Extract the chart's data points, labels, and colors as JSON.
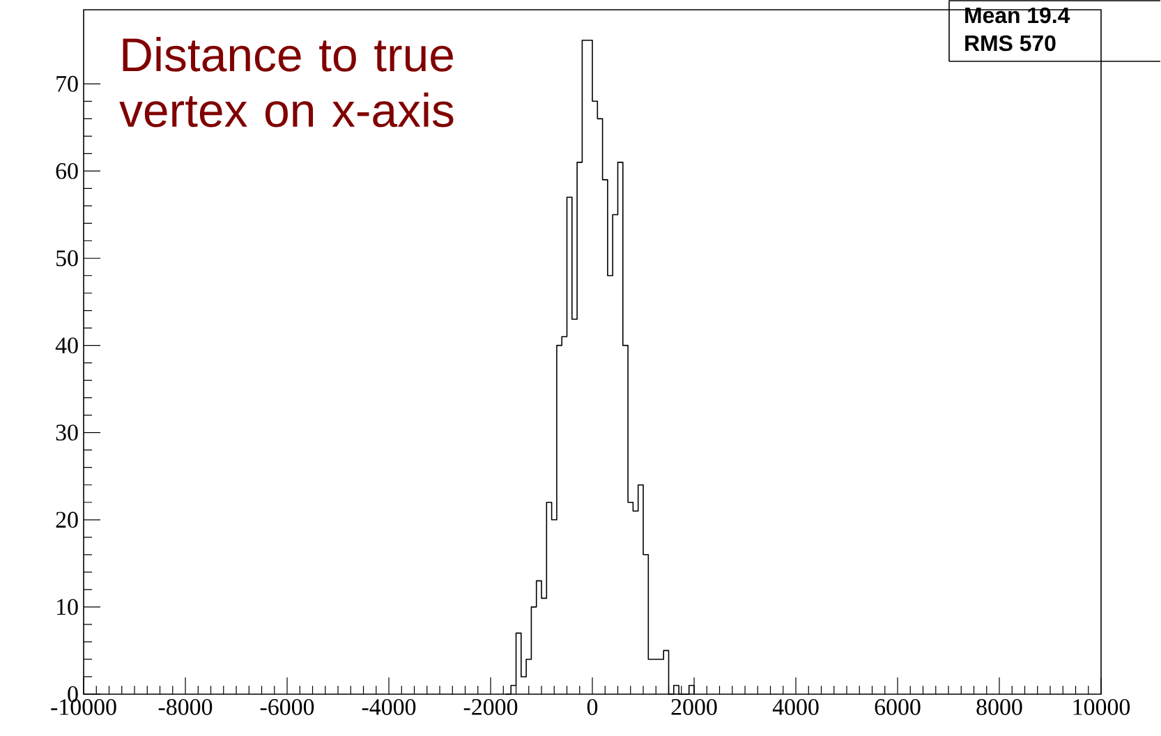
{
  "chart_data": {
    "type": "histogram",
    "bins": [
      -1700,
      -1600,
      -1500,
      -1400,
      -1300,
      -1200,
      -1100,
      -1000,
      -900,
      -800,
      -700,
      -600,
      -500,
      -400,
      -300,
      -200,
      -100,
      0,
      100,
      200,
      300,
      400,
      500,
      600,
      700,
      800,
      900,
      1000,
      1100,
      1200,
      1300,
      1400,
      1500,
      1600,
      1700,
      1800,
      1900,
      2000
    ],
    "values": [
      0,
      1,
      7,
      2,
      4,
      10,
      13,
      11,
      22,
      20,
      40,
      41,
      57,
      43,
      61,
      75,
      75,
      68,
      66,
      59,
      48,
      55,
      61,
      40,
      22,
      21,
      24,
      16,
      4,
      4,
      4,
      5,
      0,
      1,
      0,
      0,
      1
    ],
    "color": "#000000",
    "xlim": [
      -10000,
      10000
    ],
    "ylim": [
      0,
      78.5
    ],
    "xticks": [
      -10000,
      -8000,
      -6000,
      -4000,
      -2000,
      0,
      2000,
      4000,
      6000,
      8000,
      10000
    ],
    "yticks": [
      0,
      10,
      20,
      30,
      40,
      50,
      60,
      70
    ],
    "annotations": [
      "Distance to true vertex on x-axis",
      "Mean 19.4",
      "RMS 570"
    ]
  }
}
